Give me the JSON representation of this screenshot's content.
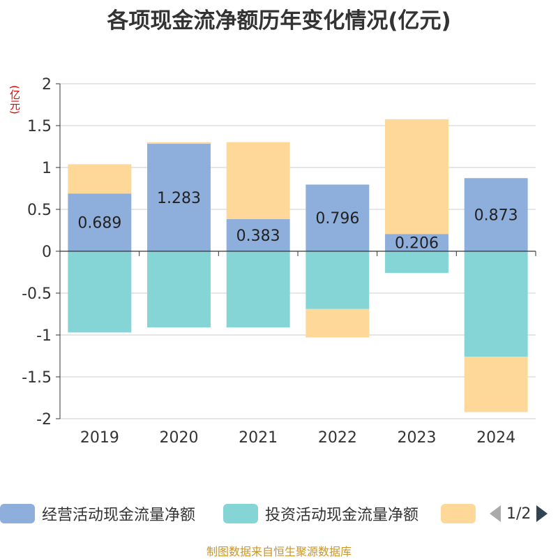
{
  "chart_data": {
    "type": "bar",
    "stacked": true,
    "title": "各项现金流净额历年变化情况(亿元)",
    "ylabel": "(亿元)",
    "ylim": [
      -2,
      2
    ],
    "yticks": [
      2,
      1.5,
      1,
      0.5,
      0,
      -0.5,
      -1,
      -1.5,
      -2
    ],
    "ytick_labels": [
      "2",
      "1.5",
      "1",
      "0.5",
      "0",
      "-0.5",
      "-1",
      "-1.5",
      "-2"
    ],
    "grid": true,
    "categories": [
      "2019",
      "2020",
      "2021",
      "2022",
      "2023",
      "2024"
    ],
    "series": [
      {
        "name": "经营活动现金流量净额",
        "color": "#8eaedb",
        "values": [
          0.689,
          1.283,
          0.383,
          0.796,
          0.206,
          0.873
        ],
        "labels": [
          "0.689",
          "1.283",
          "0.383",
          "0.796",
          "0.206",
          "0.873"
        ]
      },
      {
        "name": "投资活动现金流量净额",
        "color": "#85d5d6",
        "values": [
          -0.97,
          -0.91,
          -0.91,
          -0.69,
          -0.26,
          -1.26
        ]
      },
      {
        "name": "",
        "color": "#fed898",
        "values": [
          0.35,
          0.02,
          0.92,
          -0.34,
          1.37,
          -0.66
        ]
      }
    ]
  },
  "legend": {
    "items": [
      {
        "label": "经营活动现金流量净额",
        "color": "#8eaedb"
      },
      {
        "label": "投资活动现金流量净额",
        "color": "#85d5d6"
      },
      {
        "label": "",
        "color": "#fed898"
      }
    ],
    "page_text": "1/2",
    "prev_color": "#aaaaaa",
    "next_color": "#2f4554"
  },
  "footer": "制图数据来自恒生聚源数据库"
}
